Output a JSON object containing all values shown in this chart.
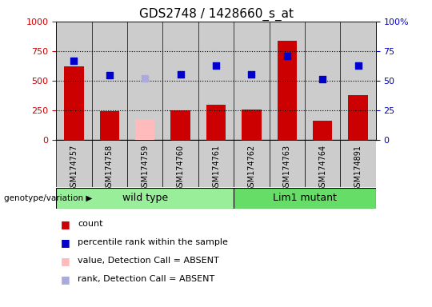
{
  "title": "GDS2748 / 1428660_s_at",
  "samples": [
    "GSM174757",
    "GSM174758",
    "GSM174759",
    "GSM174760",
    "GSM174761",
    "GSM174762",
    "GSM174763",
    "GSM174764",
    "GSM174891"
  ],
  "counts": [
    620,
    240,
    null,
    250,
    300,
    255,
    840,
    165,
    375
  ],
  "counts_absent": [
    null,
    null,
    175,
    null,
    null,
    null,
    null,
    null,
    null
  ],
  "percentile_ranks": [
    670,
    545,
    null,
    555,
    630,
    555,
    710,
    510,
    630
  ],
  "percentile_ranks_absent": [
    null,
    null,
    520,
    null,
    null,
    null,
    null,
    null,
    null
  ],
  "wild_type_indices": [
    0,
    1,
    2,
    3,
    4
  ],
  "lim1_mutant_indices": [
    5,
    6,
    7,
    8
  ],
  "ylim_left": [
    0,
    1000
  ],
  "ylim_right": [
    0,
    100
  ],
  "yticks_left": [
    0,
    250,
    500,
    750,
    1000
  ],
  "yticks_right": [
    0,
    25,
    50,
    75,
    100
  ],
  "bar_color_present": "#cc0000",
  "bar_color_absent": "#ffbbbb",
  "dot_color_present": "#0000cc",
  "dot_color_absent": "#aaaadd",
  "wild_type_color": "#99ee99",
  "lim1_mutant_color": "#66dd66",
  "bg_gray": "#cccccc",
  "legend_items": [
    {
      "label": "count",
      "color": "#cc0000"
    },
    {
      "label": "percentile rank within the sample",
      "color": "#0000cc"
    },
    {
      "label": "value, Detection Call = ABSENT",
      "color": "#ffbbbb"
    },
    {
      "label": "rank, Detection Call = ABSENT",
      "color": "#aaaadd"
    }
  ],
  "genotype_label": "genotype/variation",
  "group1_label": "wild type",
  "group2_label": "Lim1 mutant",
  "bar_width": 0.55,
  "dot_size": 40,
  "axis_color_left": "#cc0000",
  "axis_color_right": "#0000cc"
}
